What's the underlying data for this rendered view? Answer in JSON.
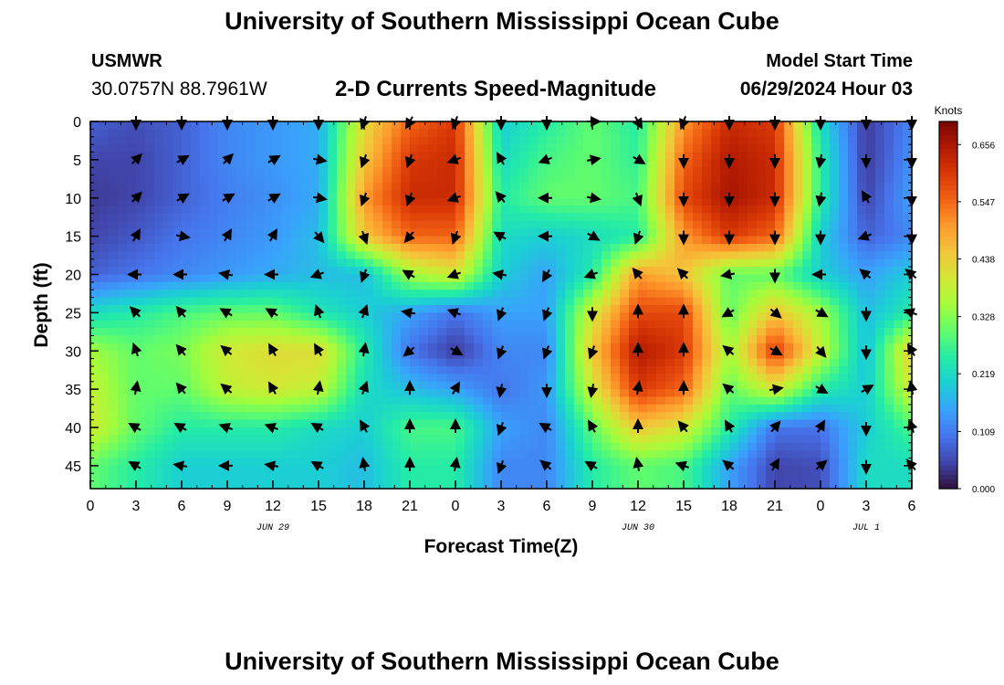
{
  "header": {
    "title": "University of Southern Mississippi Ocean Cube",
    "station": "USMWR",
    "coords": "30.0757N  88.7961W",
    "subtitle": "2-D Currents Speed-Magnitude",
    "model_start_label": "Model Start Time",
    "model_start_value": "06/29/2024 Hour 03",
    "footer_title": "University of Southern Mississippi Ocean Cube"
  },
  "chart_data": {
    "type": "heatmap",
    "title": "2-D Currents Speed-Magnitude",
    "xlabel": "Forecast Time(Z)",
    "ylabel": "Depth (ft)",
    "x_hours": [
      0,
      3,
      6,
      9,
      12,
      15,
      18,
      21,
      24,
      27,
      30,
      33,
      36,
      39,
      42,
      45,
      48,
      51,
      54
    ],
    "x_tick_labels": [
      "0",
      "3",
      "6",
      "9",
      "12",
      "15",
      "18",
      "21",
      "0",
      "3",
      "6",
      "9",
      "12",
      "15",
      "18",
      "21",
      "0",
      "3",
      "6"
    ],
    "date_labels": [
      {
        "label": "JUN 29",
        "hour": 12
      },
      {
        "label": "JUN 30",
        "hour": 36
      },
      {
        "label": "JUL 1",
        "hour": 51
      }
    ],
    "y_depths": [
      0,
      5,
      10,
      15,
      20,
      25,
      30,
      35,
      40,
      45
    ],
    "y_tick_labels": [
      "0",
      "5",
      "10",
      "15",
      "20",
      "25",
      "30",
      "35",
      "40",
      "45"
    ],
    "y_range": [
      0,
      48
    ],
    "x_range": [
      0,
      54
    ],
    "speed_knots": [
      [
        0.08,
        0.06,
        0.08,
        0.12,
        0.14,
        0.16,
        0.42,
        0.55,
        0.6,
        0.2,
        0.25,
        0.3,
        0.25,
        0.5,
        0.62,
        0.6,
        0.22,
        0.04,
        0.12
      ],
      [
        0.05,
        0.05,
        0.08,
        0.12,
        0.14,
        0.16,
        0.45,
        0.6,
        0.62,
        0.22,
        0.28,
        0.3,
        0.26,
        0.55,
        0.65,
        0.62,
        0.25,
        0.04,
        0.13
      ],
      [
        0.04,
        0.05,
        0.08,
        0.11,
        0.13,
        0.16,
        0.5,
        0.62,
        0.62,
        0.25,
        0.3,
        0.3,
        0.28,
        0.58,
        0.66,
        0.62,
        0.25,
        0.05,
        0.15
      ],
      [
        0.05,
        0.07,
        0.1,
        0.12,
        0.14,
        0.18,
        0.45,
        0.55,
        0.55,
        0.22,
        0.2,
        0.22,
        0.25,
        0.5,
        0.6,
        0.55,
        0.2,
        0.08,
        0.12
      ],
      [
        0.08,
        0.1,
        0.12,
        0.14,
        0.16,
        0.18,
        0.18,
        0.35,
        0.4,
        0.2,
        0.15,
        0.25,
        0.5,
        0.45,
        0.3,
        0.3,
        0.2,
        0.15,
        0.2
      ],
      [
        0.22,
        0.25,
        0.28,
        0.3,
        0.3,
        0.24,
        0.2,
        0.15,
        0.1,
        0.15,
        0.15,
        0.4,
        0.58,
        0.58,
        0.3,
        0.45,
        0.35,
        0.18,
        0.25
      ],
      [
        0.35,
        0.3,
        0.32,
        0.4,
        0.42,
        0.42,
        0.25,
        0.1,
        0.04,
        0.12,
        0.12,
        0.45,
        0.65,
        0.6,
        0.35,
        0.6,
        0.38,
        0.18,
        0.45
      ],
      [
        0.38,
        0.3,
        0.3,
        0.38,
        0.4,
        0.38,
        0.22,
        0.18,
        0.15,
        0.1,
        0.14,
        0.4,
        0.6,
        0.55,
        0.3,
        0.4,
        0.25,
        0.2,
        0.4
      ],
      [
        0.4,
        0.3,
        0.25,
        0.25,
        0.25,
        0.22,
        0.2,
        0.28,
        0.28,
        0.15,
        0.12,
        0.3,
        0.45,
        0.4,
        0.25,
        0.1,
        0.1,
        0.2,
        0.28
      ],
      [
        0.3,
        0.25,
        0.2,
        0.2,
        0.2,
        0.2,
        0.18,
        0.25,
        0.25,
        0.12,
        0.12,
        0.25,
        0.3,
        0.28,
        0.15,
        0.05,
        0.06,
        0.22,
        0.22
      ]
    ],
    "direction_deg": [
      [
        180,
        180,
        180,
        180,
        180,
        180,
        200,
        210,
        200,
        180,
        180,
        90,
        150,
        200,
        180,
        180,
        180,
        180,
        180
      ],
      [
        180,
        45,
        60,
        45,
        60,
        100,
        200,
        200,
        250,
        330,
        250,
        80,
        120,
        180,
        180,
        180,
        190,
        180,
        180
      ],
      [
        180,
        45,
        60,
        60,
        60,
        100,
        200,
        200,
        250,
        320,
        270,
        100,
        160,
        180,
        180,
        180,
        190,
        330,
        180
      ],
      [
        180,
        30,
        100,
        30,
        30,
        140,
        160,
        220,
        200,
        300,
        270,
        120,
        200,
        180,
        180,
        180,
        180,
        250,
        180
      ],
      [
        180,
        270,
        270,
        280,
        270,
        250,
        200,
        300,
        250,
        280,
        210,
        250,
        320,
        315,
        260,
        180,
        270,
        310,
        310
      ],
      [
        180,
        315,
        320,
        300,
        300,
        340,
        20,
        280,
        290,
        200,
        200,
        180,
        0,
        0,
        240,
        130,
        120,
        180,
        290
      ],
      [
        180,
        340,
        320,
        310,
        330,
        330,
        10,
        230,
        120,
        200,
        200,
        200,
        0,
        0,
        310,
        120,
        140,
        180,
        330
      ],
      [
        180,
        10,
        320,
        310,
        330,
        10,
        20,
        0,
        30,
        190,
        180,
        190,
        10,
        0,
        310,
        80,
        120,
        60,
        350
      ],
      [
        180,
        300,
        300,
        290,
        290,
        300,
        330,
        0,
        0,
        200,
        300,
        330,
        0,
        320,
        330,
        40,
        30,
        180,
        340
      ],
      [
        180,
        300,
        280,
        270,
        280,
        300,
        350,
        0,
        10,
        200,
        310,
        300,
        350,
        290,
        310,
        30,
        50,
        180,
        320
      ]
    ],
    "colorbar": {
      "unit": "Knots",
      "tick_labels": [
        "0.000",
        "0.109",
        "0.219",
        "0.328",
        "0.438",
        "0.547",
        "0.656"
      ],
      "range": [
        0,
        0.7
      ],
      "palette": [
        "#30123b",
        "#4145ab",
        "#4675ed",
        "#39a2fc",
        "#1bcfd4",
        "#24eca6",
        "#61fc6c",
        "#a4fc3b",
        "#d1e834",
        "#f3c63a",
        "#fe9b2d",
        "#f36315",
        "#d93806",
        "#b11901",
        "#7a0403"
      ]
    }
  }
}
